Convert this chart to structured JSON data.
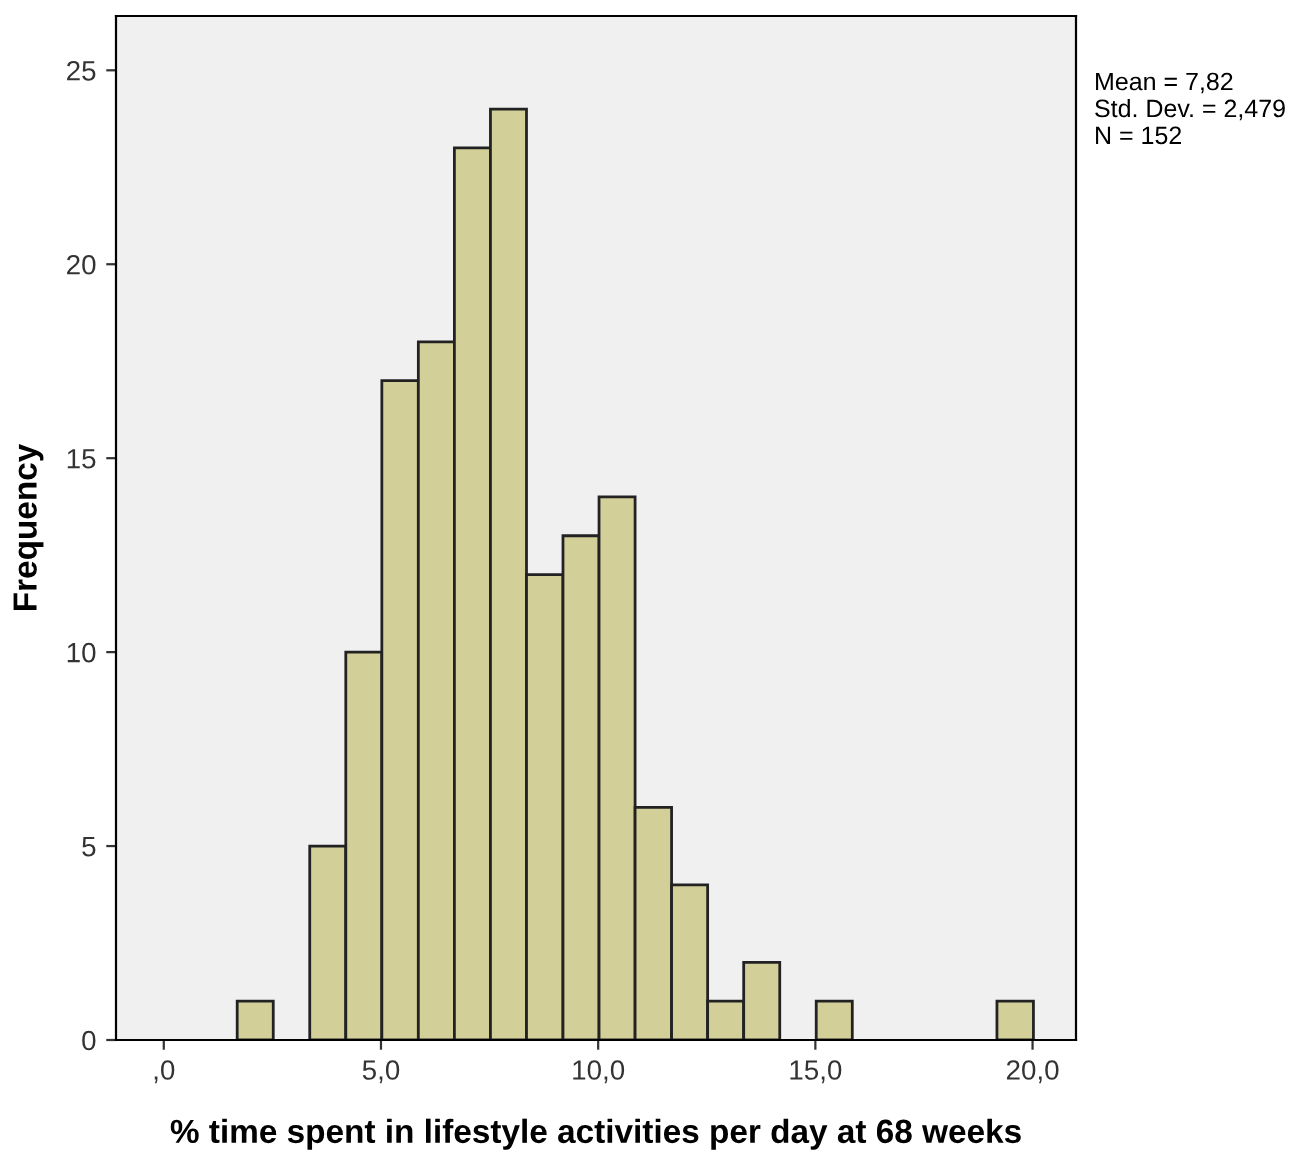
{
  "chart_data": {
    "type": "histogram",
    "xlabel": "% time spent in lifestyle activities per day at 68 weeks",
    "ylabel": "Frequency",
    "bins": [
      1.69,
      2.52,
      3.36,
      4.19,
      5.02,
      5.86,
      6.69,
      7.52,
      8.35,
      9.19,
      10.02,
      10.85,
      11.69,
      12.52,
      13.35,
      14.18,
      15.02,
      15.85,
      16.68,
      17.52,
      18.35,
      19.18,
      20.02
    ],
    "values": [
      1,
      0,
      5,
      10,
      17,
      18,
      23,
      24,
      12,
      13,
      14,
      6,
      4,
      1,
      2,
      0,
      1,
      0,
      0,
      0,
      0,
      1
    ],
    "color": "#d3cf98",
    "xlim": [
      -1.1,
      21.0
    ],
    "ylim": [
      0,
      26.4
    ],
    "xticks": [
      {
        "value": 0,
        "label": ",0"
      },
      {
        "value": 5,
        "label": "5,0"
      },
      {
        "value": 10,
        "label": "10,0"
      },
      {
        "value": 15,
        "label": "15,0"
      },
      {
        "value": 20,
        "label": "20,0"
      }
    ],
    "yticks": [
      0,
      5,
      10,
      15,
      20,
      25
    ],
    "grid": false,
    "annotations": [
      "Mean = 7,82\nStd. Dev. = 2,479\nN = 152"
    ]
  }
}
